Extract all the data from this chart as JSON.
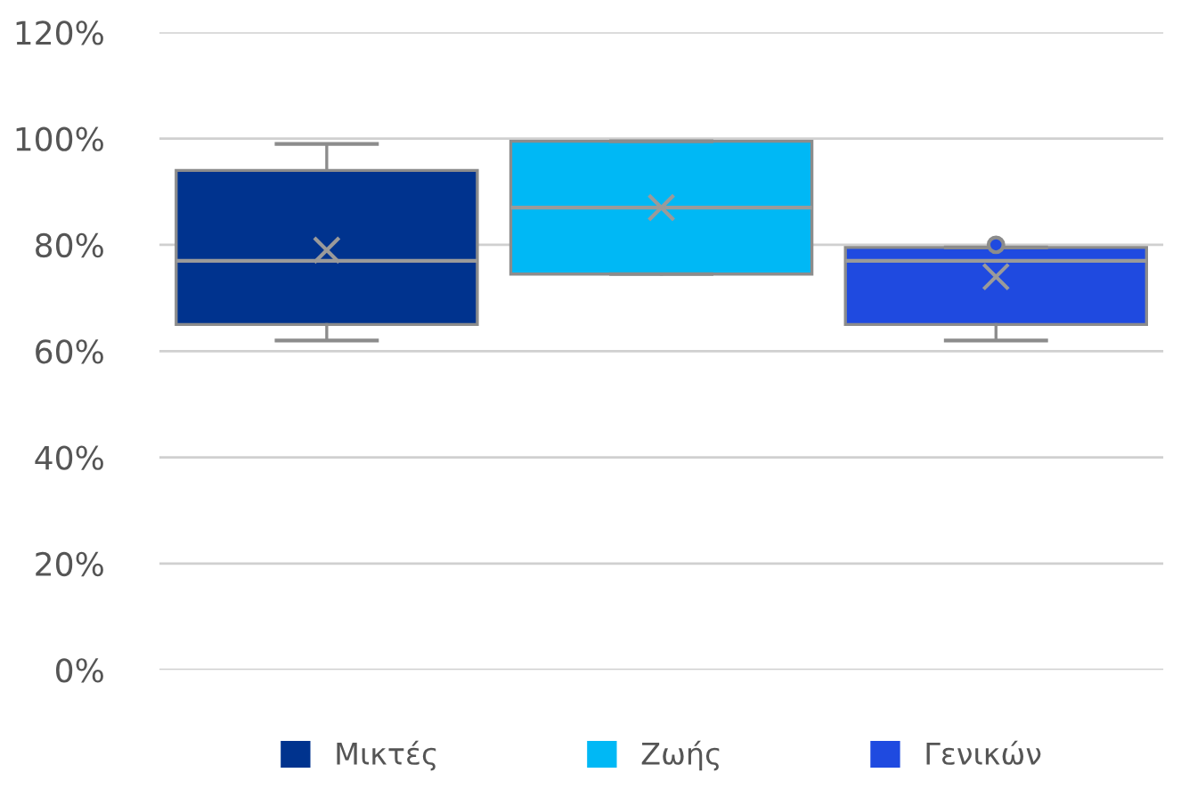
{
  "chart_data": {
    "type": "box",
    "ylim": [
      0,
      120
    ],
    "yticks": [
      {
        "value": 0,
        "label": "0%"
      },
      {
        "value": 20,
        "label": "20%"
      },
      {
        "value": 40,
        "label": "40%"
      },
      {
        "value": 60,
        "label": "60%"
      },
      {
        "value": 80,
        "label": "80%"
      },
      {
        "value": 100,
        "label": "100%"
      },
      {
        "value": 120,
        "label": "120%"
      }
    ],
    "grid": "y",
    "legend": "bottom",
    "marker": "cross",
    "series": [
      {
        "name": "Μικτές",
        "color": "#00338e",
        "boxes": [
          {
            "low": 62,
            "q1": 65,
            "median": 77,
            "q3": 94,
            "high": 99,
            "mean": 79
          }
        ]
      },
      {
        "name": "Ζωής",
        "color": "#00b8f5",
        "boxes": [
          {
            "low": 74.5,
            "q1": 74.5,
            "median": 87,
            "q3": 99.5,
            "high": 99.5,
            "mean": 87
          }
        ]
      },
      {
        "name": "Γενικών",
        "color": "#1f4ae0",
        "boxes": [
          {
            "low": 62,
            "q1": 65,
            "median": 77,
            "q3": 79.5,
            "high": 79.5,
            "mean": 74,
            "outliers": [
              80
            ]
          }
        ]
      }
    ]
  }
}
